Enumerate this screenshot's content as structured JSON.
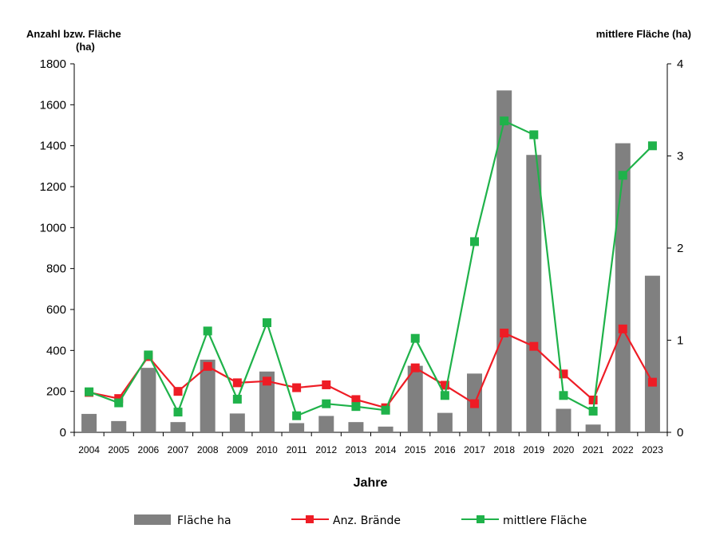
{
  "chart_data": {
    "type": "bar",
    "y_left_title_line1": "Anzahl bzw. Fläche",
    "y_left_title_line2": "(ha)",
    "y_right_title": "mittlere Fläche (ha)",
    "xlabel": "Jahre",
    "y_left_lim": [
      0,
      1800
    ],
    "y_left_ticks": [
      0,
      200,
      400,
      600,
      800,
      1000,
      1200,
      1400,
      1600,
      1800
    ],
    "y_right_lim": [
      0,
      4
    ],
    "y_right_ticks": [
      0,
      1,
      2,
      3,
      4
    ],
    "categories": [
      "2004",
      "2005",
      "2006",
      "2007",
      "2008",
      "2009",
      "2010",
      "2011",
      "2012",
      "2013",
      "2014",
      "2015",
      "2016",
      "2017",
      "2018",
      "2019",
      "2020",
      "2021",
      "2022",
      "2023"
    ],
    "series": [
      {
        "name": "Fläche ha",
        "kind": "bar",
        "axis": "left",
        "color": "#808080",
        "values": [
          90,
          55,
          315,
          50,
          355,
          92,
          297,
          45,
          80,
          50,
          28,
          325,
          95,
          287,
          1670,
          1355,
          115,
          38,
          1412,
          765
        ]
      },
      {
        "name": "Anz. Brände",
        "kind": "line",
        "axis": "left",
        "color": "#ee1c25",
        "values": [
          195,
          165,
          370,
          200,
          322,
          242,
          250,
          218,
          232,
          160,
          120,
          315,
          230,
          140,
          485,
          420,
          285,
          158,
          505,
          245
        ]
      },
      {
        "name": "mittlere Fläche",
        "kind": "line",
        "axis": "right",
        "color": "#1fb24a",
        "values": [
          0.44,
          0.32,
          0.84,
          0.22,
          1.1,
          0.36,
          1.19,
          0.18,
          0.31,
          0.28,
          0.24,
          1.02,
          0.4,
          2.07,
          3.38,
          3.23,
          0.4,
          0.23,
          2.79,
          3.11
        ]
      }
    ],
    "legend_position": "bottom",
    "grid": false
  }
}
